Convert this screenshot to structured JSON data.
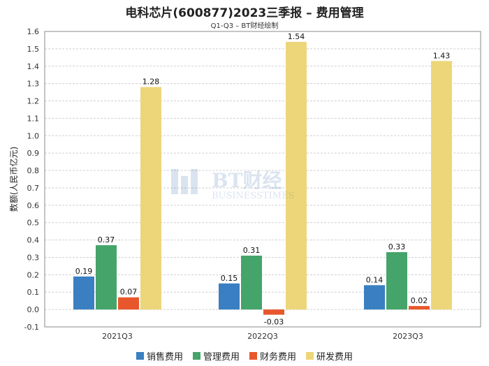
{
  "header": {
    "title": "电科芯片(600877)2023三季报 – 费用管理",
    "subtitle": "Q1-Q3 – BT财经绘制"
  },
  "watermark": {
    "text_cn": "BT财经",
    "text_en": "BUSINESSTIMES"
  },
  "chart_data": {
    "type": "bar",
    "title": "电科芯片(600877)2023三季报 – 费用管理",
    "subtitle": "Q1-Q3 – BT财经绘制",
    "xlabel": "",
    "ylabel": "数额(人民币亿元)",
    "ylim": [
      -0.1,
      1.6
    ],
    "yticks": [
      -0.1,
      0.0,
      0.1,
      0.2,
      0.3,
      0.4,
      0.5,
      0.6,
      0.7,
      0.8,
      0.9,
      1.0,
      1.1,
      1.2,
      1.3,
      1.4,
      1.5,
      1.6
    ],
    "categories": [
      "2021Q3",
      "2022Q3",
      "2023Q3"
    ],
    "grid": true,
    "legend_position": "bottom",
    "series": [
      {
        "name": "销售费用",
        "color": "#3a7fc1",
        "values": [
          0.19,
          0.15,
          0.14
        ]
      },
      {
        "name": "管理费用",
        "color": "#45a46a",
        "values": [
          0.37,
          0.31,
          0.33
        ]
      },
      {
        "name": "财务费用",
        "color": "#e8572b",
        "values": [
          0.07,
          -0.03,
          0.02
        ]
      },
      {
        "name": "研发费用",
        "color": "#edd67a",
        "values": [
          1.28,
          1.54,
          1.43
        ]
      }
    ]
  }
}
